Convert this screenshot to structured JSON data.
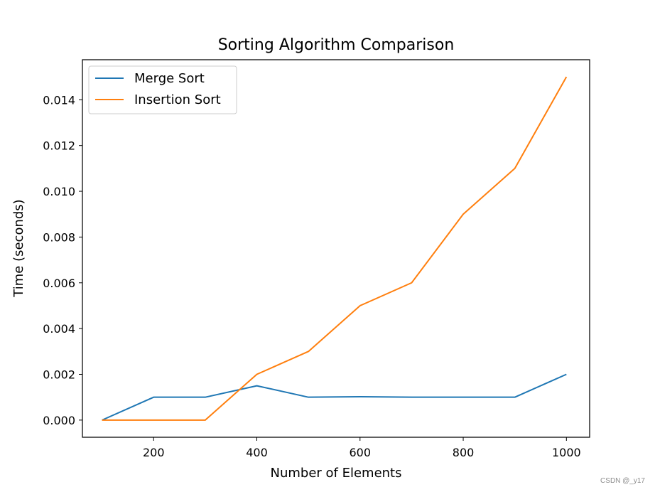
{
  "chart_data": {
    "type": "line",
    "title": "Sorting Algorithm Comparison",
    "xlabel": "Number of Elements",
    "ylabel": "Time (seconds)",
    "xlim": [
      62,
      1045
    ],
    "ylim": [
      -0.00075,
      0.01575
    ],
    "xticks": [
      200,
      400,
      600,
      800,
      1000
    ],
    "yticks": [
      0.0,
      0.002,
      0.004,
      0.006,
      0.008,
      0.01,
      0.012,
      0.014
    ],
    "ytick_labels": [
      "0.000",
      "0.002",
      "0.004",
      "0.006",
      "0.008",
      "0.010",
      "0.012",
      "0.014"
    ],
    "grid": false,
    "legend_position": "top-left",
    "x": [
      100,
      200,
      300,
      400,
      500,
      600,
      700,
      800,
      900,
      1000
    ],
    "series": [
      {
        "name": "Merge Sort",
        "color": "#1f77b4",
        "values": [
          0.0,
          0.001,
          0.001,
          0.0015,
          0.001,
          0.00102,
          0.001,
          0.001,
          0.001,
          0.002
        ]
      },
      {
        "name": "Insertion Sort",
        "color": "#ff7f0e",
        "values": [
          0.0,
          0.0,
          0.0,
          0.002,
          0.003,
          0.005,
          0.006,
          0.009,
          0.011,
          0.015
        ]
      }
    ]
  },
  "watermark": "CSDN @_y17"
}
